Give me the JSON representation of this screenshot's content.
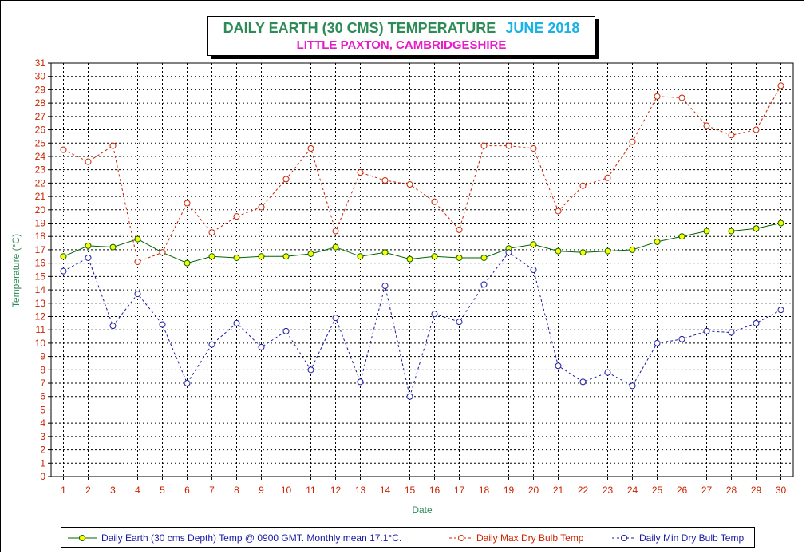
{
  "chart_data": {
    "type": "line",
    "title": "DAILY EARTH (30 CMS) TEMPERATURE",
    "title_month": "JUNE 2018",
    "subtitle": "LITTLE PAXTON, CAMBRIDGESHIRE",
    "xlabel": "Date",
    "ylabel": "Temperature (°C)",
    "ylim": [
      0,
      31
    ],
    "xlim": [
      1,
      30
    ],
    "grid": true,
    "legend_position": "bottom",
    "x": [
      1,
      2,
      3,
      4,
      5,
      6,
      7,
      8,
      9,
      10,
      11,
      12,
      13,
      14,
      15,
      16,
      17,
      18,
      19,
      20,
      21,
      22,
      23,
      24,
      25,
      26,
      27,
      28,
      29,
      30
    ],
    "series": [
      {
        "name": "Daily Earth (30 cms Depth) Temp @ 0900 GMT. Monthly mean 17.1°C.",
        "color": "#006400",
        "marker_fill": "#ffff00",
        "style": "solid",
        "values": [
          16.5,
          17.3,
          17.2,
          17.8,
          16.8,
          16.0,
          16.5,
          16.4,
          16.5,
          16.5,
          16.7,
          17.2,
          16.5,
          16.8,
          16.3,
          16.5,
          16.4,
          16.4,
          17.1,
          17.4,
          16.9,
          16.8,
          16.9,
          17.0,
          17.6,
          18.0,
          18.4,
          18.4,
          18.6,
          19.0
        ]
      },
      {
        "name": "Daily Max Dry Bulb Temp",
        "color": "#cc2200",
        "marker_fill": "#ffffff",
        "style": "dashed",
        "values": [
          24.5,
          23.6,
          24.8,
          16.1,
          16.8,
          20.5,
          18.3,
          19.5,
          20.2,
          22.3,
          24.6,
          18.4,
          22.8,
          22.2,
          21.9,
          20.6,
          18.5,
          24.8,
          24.8,
          24.6,
          19.9,
          21.8,
          22.4,
          25.1,
          28.5,
          28.4,
          26.3,
          25.6,
          26.0,
          29.3
        ]
      },
      {
        "name": "Daily Min Dry Bulb Temp",
        "color": "#1a1aa6",
        "marker_fill": "#ffffff",
        "style": "dashed",
        "values": [
          15.4,
          16.4,
          11.3,
          13.7,
          11.4,
          7.0,
          9.9,
          11.5,
          9.7,
          10.9,
          8.0,
          11.9,
          7.1,
          14.3,
          6.0,
          12.2,
          11.6,
          14.4,
          16.8,
          15.5,
          8.3,
          7.1,
          7.8,
          6.8,
          10.0,
          10.3,
          10.9,
          10.8,
          11.5,
          12.5
        ]
      }
    ]
  }
}
